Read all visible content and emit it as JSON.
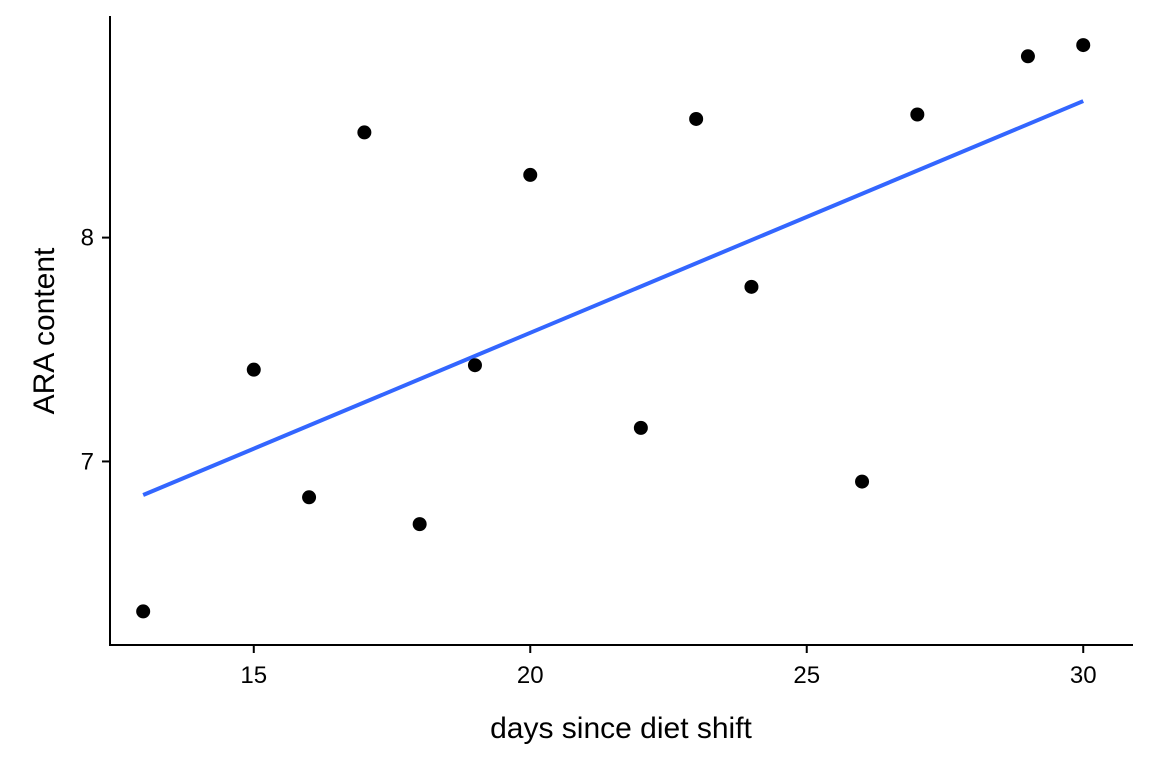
{
  "chart_data": {
    "type": "scatter",
    "title": "",
    "xlabel": "days since diet shift",
    "ylabel": "ARA content",
    "xlim": [
      12.4,
      30.9
    ],
    "ylim": [
      6.18,
      8.99
    ],
    "x_ticks": [
      15,
      20,
      25,
      30
    ],
    "y_ticks": [
      7,
      8
    ],
    "grid": false,
    "legend": "none",
    "points": [
      {
        "x": 13,
        "y": 6.33
      },
      {
        "x": 15,
        "y": 7.41
      },
      {
        "x": 16,
        "y": 6.84
      },
      {
        "x": 17,
        "y": 8.47
      },
      {
        "x": 18,
        "y": 6.72
      },
      {
        "x": 19,
        "y": 7.43
      },
      {
        "x": 20,
        "y": 8.28
      },
      {
        "x": 22,
        "y": 7.15
      },
      {
        "x": 23,
        "y": 8.53
      },
      {
        "x": 24,
        "y": 7.78
      },
      {
        "x": 26,
        "y": 6.91
      },
      {
        "x": 27,
        "y": 8.55
      },
      {
        "x": 29,
        "y": 8.81
      },
      {
        "x": 30,
        "y": 8.86
      }
    ],
    "fit_line": {
      "x": [
        13,
        30
      ],
      "y": [
        6.85,
        8.61
      ]
    },
    "colors": {
      "points": "#000000",
      "fit_line": "#3366FF",
      "axes": "#000000"
    }
  }
}
